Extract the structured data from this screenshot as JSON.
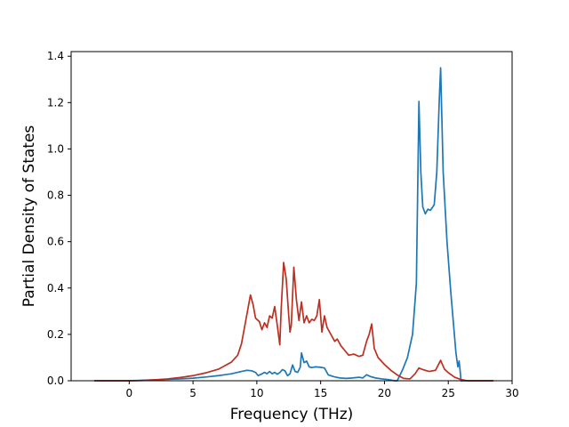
{
  "chart_data": {
    "type": "line",
    "title": "",
    "xlabel": "Frequency (THz)",
    "ylabel": "Partial Density of States",
    "xlim": [
      -4.55,
      30.0
    ],
    "ylim": [
      0.0,
      1.42
    ],
    "xticks": [
      0,
      5,
      10,
      15,
      20,
      25,
      30
    ],
    "yticks": [
      0.0,
      0.2,
      0.4,
      0.6,
      0.8,
      1.0,
      1.2,
      1.4
    ],
    "xtick_labels": [
      "0",
      "5",
      "10",
      "15",
      "20",
      "25",
      "30"
    ],
    "ytick_labels": [
      "0.0",
      "0.2",
      "0.4",
      "0.6",
      "0.8",
      "1.0",
      "1.2",
      "1.4"
    ],
    "grid": false,
    "legend": false,
    "series": [
      {
        "color": "#1f77b4",
        "points": [
          [
            -2.7,
            0.0
          ],
          [
            0.0,
            0.0
          ],
          [
            1.0,
            0.002
          ],
          [
            2.0,
            0.004
          ],
          [
            3.0,
            0.006
          ],
          [
            4.0,
            0.008
          ],
          [
            5.0,
            0.011
          ],
          [
            6.0,
            0.016
          ],
          [
            7.0,
            0.022
          ],
          [
            8.0,
            0.03
          ],
          [
            8.8,
            0.04
          ],
          [
            9.2,
            0.045
          ],
          [
            9.6,
            0.043
          ],
          [
            9.9,
            0.036
          ],
          [
            10.1,
            0.022
          ],
          [
            10.3,
            0.027
          ],
          [
            10.6,
            0.036
          ],
          [
            10.8,
            0.03
          ],
          [
            11.0,
            0.04
          ],
          [
            11.2,
            0.03
          ],
          [
            11.4,
            0.036
          ],
          [
            11.6,
            0.028
          ],
          [
            11.8,
            0.035
          ],
          [
            12.0,
            0.048
          ],
          [
            12.2,
            0.043
          ],
          [
            12.4,
            0.022
          ],
          [
            12.6,
            0.03
          ],
          [
            12.8,
            0.068
          ],
          [
            13.0,
            0.04
          ],
          [
            13.2,
            0.036
          ],
          [
            13.4,
            0.058
          ],
          [
            13.5,
            0.12
          ],
          [
            13.7,
            0.078
          ],
          [
            13.9,
            0.085
          ],
          [
            14.1,
            0.06
          ],
          [
            14.3,
            0.057
          ],
          [
            14.6,
            0.06
          ],
          [
            15.0,
            0.058
          ],
          [
            15.3,
            0.055
          ],
          [
            15.6,
            0.025
          ],
          [
            16.0,
            0.018
          ],
          [
            16.5,
            0.012
          ],
          [
            17.0,
            0.01
          ],
          [
            17.5,
            0.012
          ],
          [
            18.0,
            0.015
          ],
          [
            18.3,
            0.012
          ],
          [
            18.6,
            0.026
          ],
          [
            18.9,
            0.018
          ],
          [
            19.3,
            0.012
          ],
          [
            19.8,
            0.008
          ],
          [
            20.3,
            0.005
          ],
          [
            20.8,
            0.0
          ],
          [
            21.0,
            0.0
          ],
          [
            21.4,
            0.045
          ],
          [
            21.8,
            0.1
          ],
          [
            22.2,
            0.2
          ],
          [
            22.5,
            0.42
          ],
          [
            22.7,
            1.205
          ],
          [
            22.85,
            0.9
          ],
          [
            23.0,
            0.75
          ],
          [
            23.2,
            0.72
          ],
          [
            23.4,
            0.74
          ],
          [
            23.6,
            0.735
          ],
          [
            23.9,
            0.76
          ],
          [
            24.1,
            0.9
          ],
          [
            24.3,
            1.22
          ],
          [
            24.4,
            1.35
          ],
          [
            24.6,
            0.9
          ],
          [
            24.9,
            0.6
          ],
          [
            25.2,
            0.38
          ],
          [
            25.4,
            0.25
          ],
          [
            25.6,
            0.12
          ],
          [
            25.75,
            0.06
          ],
          [
            25.85,
            0.085
          ],
          [
            25.95,
            0.03
          ],
          [
            26.0,
            0.0
          ],
          [
            28.5,
            0.0
          ]
        ]
      },
      {
        "color": "#bb3020",
        "points": [
          [
            -2.7,
            0.0
          ],
          [
            0.0,
            0.0
          ],
          [
            1.0,
            0.001
          ],
          [
            2.0,
            0.004
          ],
          [
            3.0,
            0.008
          ],
          [
            4.0,
            0.014
          ],
          [
            5.0,
            0.022
          ],
          [
            6.0,
            0.034
          ],
          [
            7.0,
            0.05
          ],
          [
            8.0,
            0.08
          ],
          [
            8.5,
            0.11
          ],
          [
            8.8,
            0.16
          ],
          [
            9.1,
            0.25
          ],
          [
            9.3,
            0.31
          ],
          [
            9.5,
            0.37
          ],
          [
            9.7,
            0.33
          ],
          [
            9.9,
            0.27
          ],
          [
            10.2,
            0.255
          ],
          [
            10.4,
            0.22
          ],
          [
            10.6,
            0.25
          ],
          [
            10.8,
            0.23
          ],
          [
            11.0,
            0.28
          ],
          [
            11.2,
            0.27
          ],
          [
            11.4,
            0.32
          ],
          [
            11.6,
            0.24
          ],
          [
            11.8,
            0.155
          ],
          [
            11.9,
            0.3
          ],
          [
            12.1,
            0.51
          ],
          [
            12.3,
            0.44
          ],
          [
            12.5,
            0.28
          ],
          [
            12.6,
            0.21
          ],
          [
            12.7,
            0.24
          ],
          [
            12.9,
            0.49
          ],
          [
            13.1,
            0.35
          ],
          [
            13.3,
            0.26
          ],
          [
            13.5,
            0.34
          ],
          [
            13.7,
            0.25
          ],
          [
            13.9,
            0.28
          ],
          [
            14.1,
            0.25
          ],
          [
            14.3,
            0.265
          ],
          [
            14.5,
            0.26
          ],
          [
            14.7,
            0.28
          ],
          [
            14.9,
            0.35
          ],
          [
            15.1,
            0.21
          ],
          [
            15.3,
            0.28
          ],
          [
            15.5,
            0.23
          ],
          [
            15.8,
            0.2
          ],
          [
            16.1,
            0.17
          ],
          [
            16.3,
            0.18
          ],
          [
            16.6,
            0.15
          ],
          [
            16.9,
            0.13
          ],
          [
            17.2,
            0.11
          ],
          [
            17.6,
            0.115
          ],
          [
            18.0,
            0.105
          ],
          [
            18.3,
            0.11
          ],
          [
            18.6,
            0.17
          ],
          [
            18.8,
            0.2
          ],
          [
            19.0,
            0.245
          ],
          [
            19.2,
            0.14
          ],
          [
            19.5,
            0.1
          ],
          [
            20.0,
            0.07
          ],
          [
            20.5,
            0.045
          ],
          [
            21.0,
            0.025
          ],
          [
            21.5,
            0.01
          ],
          [
            22.0,
            0.008
          ],
          [
            22.4,
            0.03
          ],
          [
            22.7,
            0.055
          ],
          [
            23.0,
            0.048
          ],
          [
            23.5,
            0.04
          ],
          [
            24.0,
            0.045
          ],
          [
            24.4,
            0.088
          ],
          [
            24.7,
            0.05
          ],
          [
            25.0,
            0.035
          ],
          [
            25.5,
            0.015
          ],
          [
            26.0,
            0.005
          ],
          [
            26.5,
            0.0
          ],
          [
            28.5,
            0.0
          ]
        ]
      }
    ]
  }
}
